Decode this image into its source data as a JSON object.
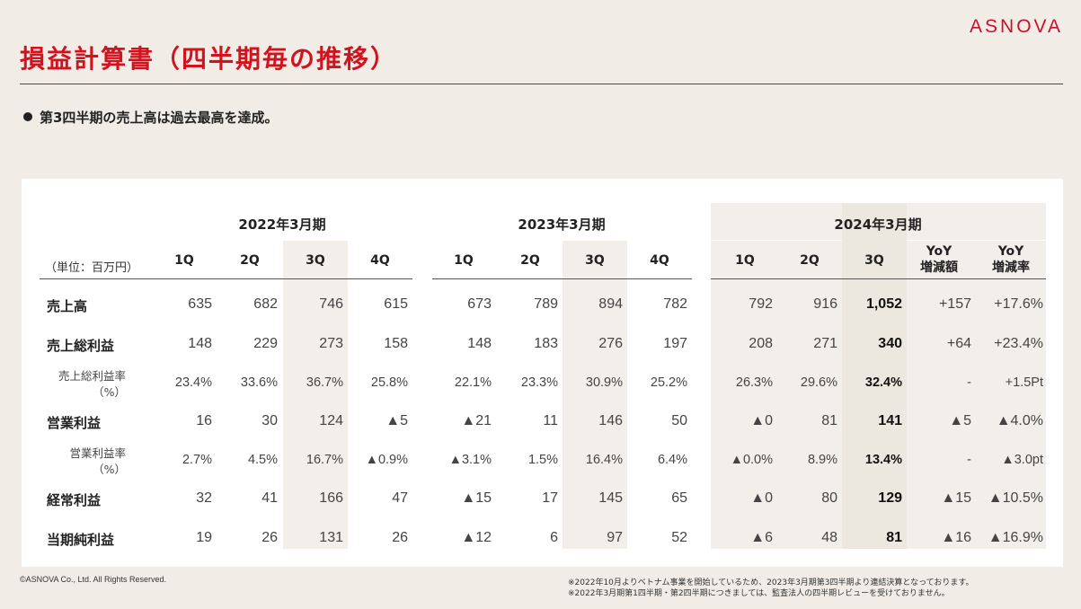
{
  "brand": {
    "logo": "ASNOVA"
  },
  "header": {
    "title": "損益計算書（四半期毎の推移）"
  },
  "highlight": {
    "text": "第3四半期の売上高は過去最高を達成。"
  },
  "table": {
    "unit_label": "（単位：百万円）",
    "periods": [
      {
        "label": "2022年3月期",
        "columns": [
          "1Q",
          "2Q",
          "3Q",
          "4Q"
        ]
      },
      {
        "label": "2023年3月期",
        "columns": [
          "1Q",
          "2Q",
          "3Q",
          "4Q"
        ]
      },
      {
        "label": "2024年3月期",
        "columns": [
          "1Q",
          "2Q",
          "3Q",
          "YoY\n増減額",
          "YoY\n増減率"
        ]
      }
    ],
    "rows": [
      {
        "label": "売上高",
        "values": [
          "635",
          "682",
          "746",
          "615",
          "673",
          "789",
          "894",
          "782",
          "792",
          "916",
          "1,052",
          "+157",
          "+17.6%"
        ]
      },
      {
        "label": "売上総利益",
        "values": [
          "148",
          "229",
          "273",
          "158",
          "148",
          "183",
          "276",
          "197",
          "208",
          "271",
          "340",
          "+64",
          "+23.4%"
        ]
      },
      {
        "label": "売上総利益率\n（%）",
        "values": [
          "23.4%",
          "33.6%",
          "36.7%",
          "25.8%",
          "22.1%",
          "23.3%",
          "30.9%",
          "25.2%",
          "26.3%",
          "29.6%",
          "32.4%",
          "-",
          "+1.5Pt"
        ]
      },
      {
        "label": "営業利益",
        "values": [
          "16",
          "30",
          "124",
          "▲5",
          "▲21",
          "11",
          "146",
          "50",
          "▲0",
          "81",
          "141",
          "▲5",
          "▲4.0%"
        ]
      },
      {
        "label": "営業利益率\n（%）",
        "values": [
          "2.7%",
          "4.5%",
          "16.7%",
          "▲0.9%",
          "▲3.1%",
          "1.5%",
          "16.4%",
          "6.4%",
          "▲0.0%",
          "8.9%",
          "13.4%",
          "-",
          "▲3.0pt"
        ]
      },
      {
        "label": "経常利益",
        "values": [
          "32",
          "41",
          "166",
          "47",
          "▲15",
          "17",
          "145",
          "65",
          "▲0",
          "80",
          "129",
          "▲15",
          "▲10.5%"
        ]
      },
      {
        "label": "当期純利益",
        "values": [
          "19",
          "26",
          "131",
          "26",
          "▲12",
          "6",
          "97",
          "52",
          "▲6",
          "48",
          "81",
          "▲16",
          "▲16.9%"
        ]
      }
    ]
  },
  "footer": {
    "copyright": "©ASNOVA Co., Ltd. All Rights Reserved.",
    "notes": [
      "※2022年10月よりベトナム事業を開始しているため、2023年3月期第3四半期より連結決算となっております。",
      "※2022年3月期第1四半期・第2四半期につきましては、監査法人の四半期レビューを受けておりません。"
    ]
  }
}
